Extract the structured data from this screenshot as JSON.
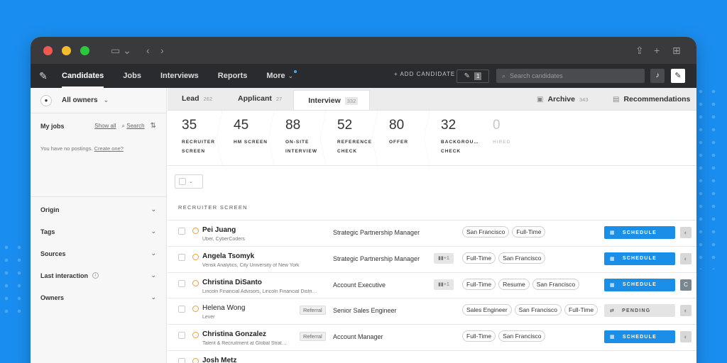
{
  "app_nav": {
    "tabs": [
      "Candidates",
      "Jobs",
      "Interviews",
      "Reports",
      "More"
    ],
    "add_candidate": "+ ADD CANDIDATE",
    "notes_count": "1",
    "search_placeholder": "Search candidates"
  },
  "sidebar": {
    "owners": "All owners",
    "my_jobs": "My jobs",
    "show_all": "Show all",
    "search": "Search",
    "no_postings": "You have no postings.",
    "create_one": "Create one?",
    "filters": [
      "Origin",
      "Tags",
      "Sources",
      "Last interaction",
      "Owners"
    ]
  },
  "stage_tabs": [
    {
      "label": "Lead",
      "count": "262"
    },
    {
      "label": "Applicant",
      "count": "27"
    },
    {
      "label": "Interview",
      "count": "332"
    }
  ],
  "archive": {
    "label": "Archive",
    "count": "343"
  },
  "recommendations": "Recommendations",
  "funnel": [
    {
      "num": "35",
      "l1": "RECRUITER",
      "l2": "SCREEN"
    },
    {
      "num": "45",
      "l1": "HM SCREEN",
      "l2": ""
    },
    {
      "num": "88",
      "l1": "ON-SITE",
      "l2": "INTERVIEW"
    },
    {
      "num": "52",
      "l1": "REFERENCE",
      "l2": "CHECK"
    },
    {
      "num": "80",
      "l1": "OFFER",
      "l2": ""
    },
    {
      "num": "32",
      "l1": "BACKGROU…",
      "l2": "CHECK"
    },
    {
      "num": "0",
      "l1": "HIRED",
      "l2": ""
    }
  ],
  "section_title": "RECRUITER SCREEN",
  "rows": [
    {
      "name": "Pei Juang",
      "sub": "Uber, CyberCoders",
      "job": "Strategic Partnership Manager",
      "tags": [
        "San Francisco",
        "Full-Time"
      ],
      "action": "SCHEDULE"
    },
    {
      "name": "Angela Tsomyk",
      "sub": "Verisk Analytics, City University of New York",
      "job": "Strategic Partnership Manager",
      "nudge": "+1",
      "tags": [
        "Full-Time",
        "San Francisco"
      ],
      "action": "SCHEDULE"
    },
    {
      "name": "Christina DiSanto",
      "sub": "Lincoln Financial Advisors, Lincoln Financial Distri…",
      "job": "Account Executive",
      "nudge": "+1",
      "tags": [
        "Full-Time",
        "Resume",
        "San Francisco"
      ],
      "action": "SCHEDULE",
      "avatar": "C"
    },
    {
      "name": "Helena Wong",
      "sub": "Lever",
      "referral": "Referral",
      "job": "Senior Sales Engineer",
      "tags": [
        "Sales Engineer",
        "San Francisco",
        "Full-Time"
      ],
      "action": "PENDING"
    },
    {
      "name": "Christina Gonzalez",
      "sub": "Talent & Recruitment at Global Strat…",
      "referral": "Referral",
      "job": "Account Manager",
      "tags": [
        "Full-Time",
        "San Francisco"
      ],
      "action": "SCHEDULE"
    },
    {
      "name": "Josh Metz",
      "sub": "",
      "job": "",
      "tags": [],
      "action": ""
    }
  ],
  "colors": {
    "accent": "#1b8fe8",
    "background": "#1a8ef0",
    "nav": "#2a2b2e",
    "pending_clock": "#f0a030"
  }
}
